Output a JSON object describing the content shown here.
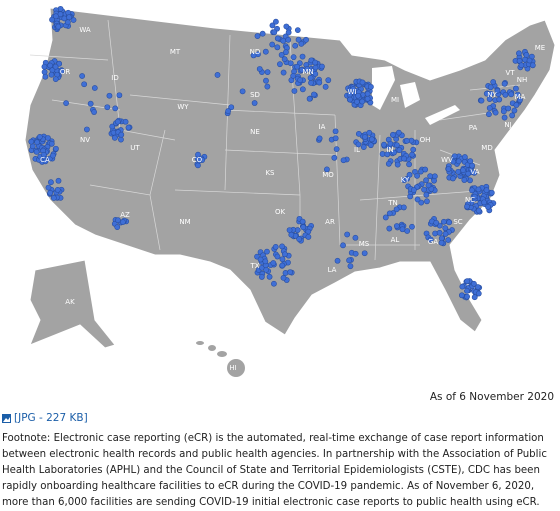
{
  "map": {
    "state_labels": [
      "WA",
      "OR",
      "CA",
      "NV",
      "ID",
      "MT",
      "WY",
      "UT",
      "AZ",
      "CO",
      "NM",
      "ND",
      "SD",
      "NE",
      "KS",
      "OK",
      "TX",
      "MN",
      "IA",
      "MO",
      "AR",
      "LA",
      "WI",
      "IL",
      "MI",
      "IN",
      "OH",
      "KY",
      "TN",
      "MS",
      "AL",
      "GA",
      "SC",
      "NC",
      "VA",
      "WV",
      "PA",
      "NY",
      "VT",
      "NH",
      "ME",
      "MA",
      "MD",
      "NJ",
      "AK",
      "HI"
    ],
    "as_of": "As of 6 November 2020"
  },
  "link": "[JPG - 227 KB]",
  "footnote": "Footnote: Electronic case reporting (eCR) is the automated, real-time exchange of case report information between electronic health records and public health agencies. In partnership with the Association of Public Health Laboratories (APHL) and the Council of State and Territorial Epidemiologists (CSTE), CDC has been rapidly onboarding healthcare facilities to eCR during the COVID-19 pandemic. As of November 6, 2020, more than 6,000 facilities are sending COVID-19 initial electronic case reports to public health using eCR."
}
